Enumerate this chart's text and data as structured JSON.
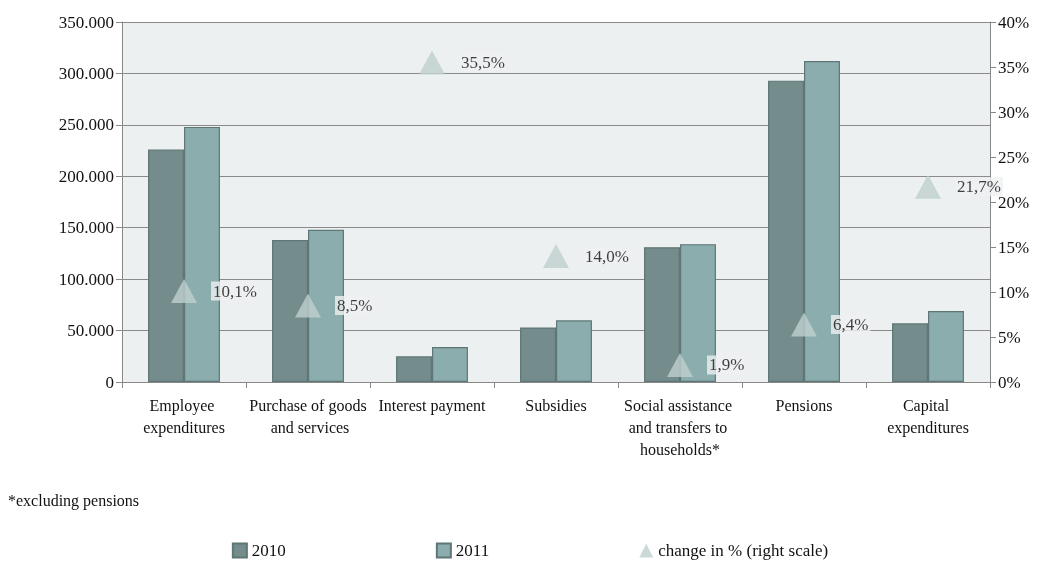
{
  "chart_data": {
    "type": "bar",
    "categories": [
      "Employee expenditures",
      "Purchase of goods and services",
      "Interest payment",
      "Subsidies",
      "Social assistance and transfers to households*",
      "Pensions",
      "Capital expenditures"
    ],
    "series": [
      {
        "name": "2010",
        "color": "#758c8c",
        "values": [
          226000,
          138000,
          25000,
          53000,
          131000,
          293000,
          57000
        ]
      },
      {
        "name": "2011",
        "color": "#8badae",
        "values": [
          248000,
          148000,
          34000,
          60000,
          134000,
          312000,
          69000
        ]
      },
      {
        "name": "change in % (right scale)",
        "type": "scatter",
        "axis": "y2",
        "marker": "triangle",
        "color": "#bfcfcf",
        "values": [
          10.1,
          8.5,
          35.5,
          14.0,
          1.9,
          6.4,
          21.7
        ],
        "value_labels": [
          "10,1%",
          "8,5%",
          "35,5%",
          "14,0%",
          "1,9%",
          "6,4%",
          "21,7%"
        ]
      }
    ],
    "ylim": [
      0,
      350000
    ],
    "yticks": [
      0,
      {
        "value": 50000,
        "label": "50.000"
      },
      {
        "value": 100000,
        "label": "100.000"
      },
      {
        "value": 150000,
        "label": "150.000"
      },
      {
        "value": 200000,
        "label": "200.000"
      },
      {
        "value": 250000,
        "label": "250.000"
      },
      {
        "value": 300000,
        "label": "300.000"
      },
      {
        "value": 350000,
        "label": "350.000"
      }
    ],
    "y2lim": [
      0,
      40
    ],
    "y2ticks": [
      {
        "value": 0,
        "label": "0%"
      },
      {
        "value": 5,
        "label": "5%"
      },
      {
        "value": 10,
        "label": "10%"
      },
      {
        "value": 15,
        "label": "15%"
      },
      {
        "value": 20,
        "label": "20%"
      },
      {
        "value": 25,
        "label": "25%"
      },
      {
        "value": 30,
        "label": "30%"
      },
      {
        "value": 35,
        "label": "35%"
      },
      {
        "value": 40,
        "label": "40%"
      }
    ],
    "grid": "y",
    "legend": "bottom",
    "annotations": [
      "*excluding pensions"
    ]
  }
}
